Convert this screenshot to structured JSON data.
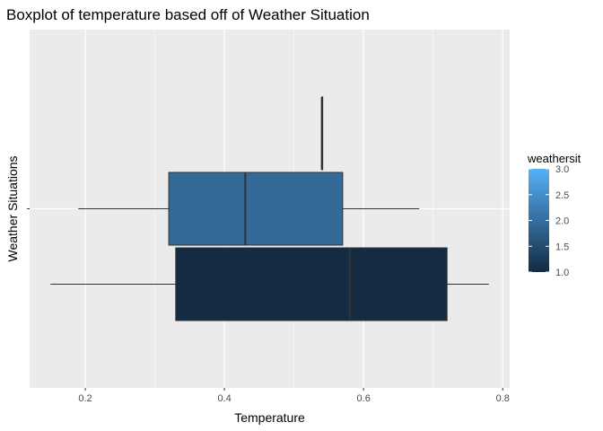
{
  "chart_data": {
    "type": "boxplot",
    "title": "Boxplot of temperature based off of Weather Situation",
    "xlabel": "Temperature",
    "ylabel": "Weather Situations",
    "xlim": [
      0.12,
      0.81
    ],
    "x_ticks": [
      0.2,
      0.4,
      0.6,
      0.8
    ],
    "x_tick_labels": [
      "0.2",
      "0.4",
      "0.6",
      "0.8"
    ],
    "grid": true,
    "background": "#ebebeb",
    "legend": {
      "title": "weathersit",
      "position": "right",
      "min": 1.0,
      "max": 3.0,
      "tick_values": [
        1.0,
        1.5,
        2.0,
        2.5,
        3.0
      ],
      "tick_labels": [
        "1.0",
        "1.5",
        "2.0",
        "2.5",
        "3.0"
      ],
      "low_color": "#132b43",
      "high_color": "#56b1f7"
    },
    "boxes": [
      {
        "weathersit": 3,
        "color": "#4b99db",
        "whisker_low": 0.54,
        "q1": 0.54,
        "median": 0.54,
        "q3": 0.54,
        "whisker_high": 0.54,
        "band": 0
      },
      {
        "weathersit": 2,
        "color": "#336a98",
        "whisker_low": 0.19,
        "q1": 0.32,
        "median": 0.43,
        "q3": 0.57,
        "whisker_high": 0.68,
        "band": 1
      },
      {
        "weathersit": 1,
        "color": "#132b43",
        "whisker_low": 0.15,
        "q1": 0.33,
        "median": 0.58,
        "q3": 0.72,
        "whisker_high": 0.78,
        "band": 2
      }
    ]
  }
}
